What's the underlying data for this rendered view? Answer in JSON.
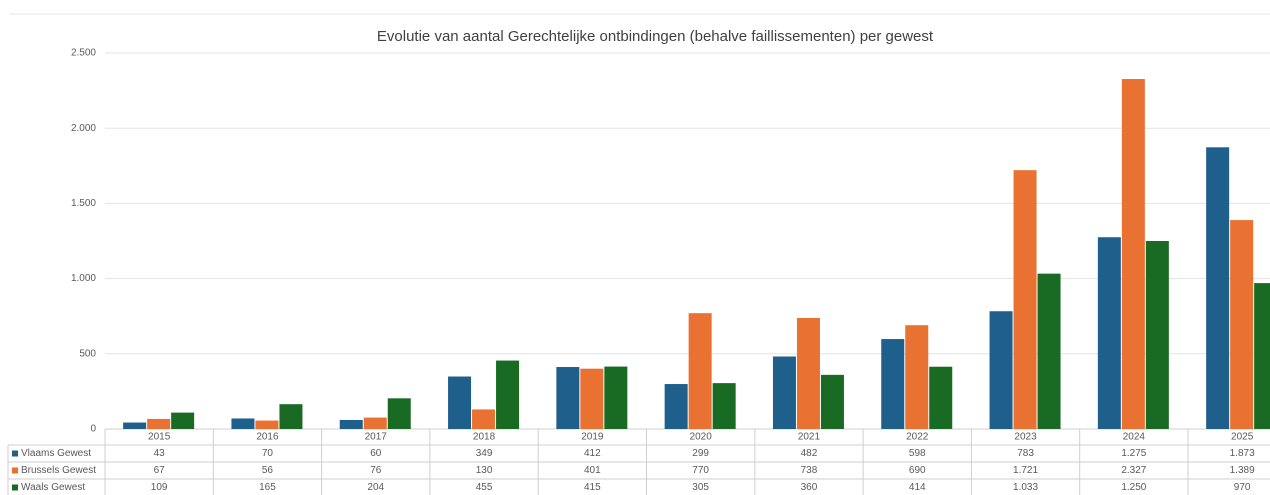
{
  "chart_data": {
    "type": "bar",
    "title": "Evolutie van aantal Gerechtelijke ontbindingen (behalve faillissementen) per gewest",
    "categories": [
      "2015",
      "2016",
      "2017",
      "2018",
      "2019",
      "2020",
      "2021",
      "2022",
      "2023",
      "2024",
      "2025"
    ],
    "series": [
      {
        "name": "Vlaams Gewest",
        "color": "#1f5f8b",
        "values": [
          43,
          70,
          60,
          349,
          412,
          299,
          482,
          598,
          783,
          1275,
          1873
        ],
        "value_labels": [
          "43",
          "70",
          "60",
          "349",
          "412",
          "299",
          "482",
          "598",
          "783",
          "1.275",
          "1.873"
        ]
      },
      {
        "name": "Brussels Gewest",
        "color": "#e97132",
        "values": [
          67,
          56,
          76,
          130,
          401,
          770,
          738,
          690,
          1721,
          2327,
          1389
        ],
        "value_labels": [
          "67",
          "56",
          "76",
          "130",
          "401",
          "770",
          "738",
          "690",
          "1.721",
          "2.327",
          "1.389"
        ]
      },
      {
        "name": "Waals Gewest",
        "color": "#196b24",
        "values": [
          109,
          165,
          204,
          455,
          415,
          305,
          360,
          414,
          1033,
          1250,
          970
        ],
        "value_labels": [
          "109",
          "165",
          "204",
          "455",
          "415",
          "305",
          "360",
          "414",
          "1.033",
          "1.250",
          "970"
        ]
      }
    ],
    "ylim": [
      0,
      2500
    ],
    "yticks": [
      0,
      500,
      {
        "value": 1000,
        "label": "1.000"
      },
      {
        "value": 1500,
        "label": "1.500"
      },
      {
        "value": 2000,
        "label": "2.000"
      },
      {
        "value": 2500,
        "label": "2.500"
      }
    ],
    "grid": true
  }
}
